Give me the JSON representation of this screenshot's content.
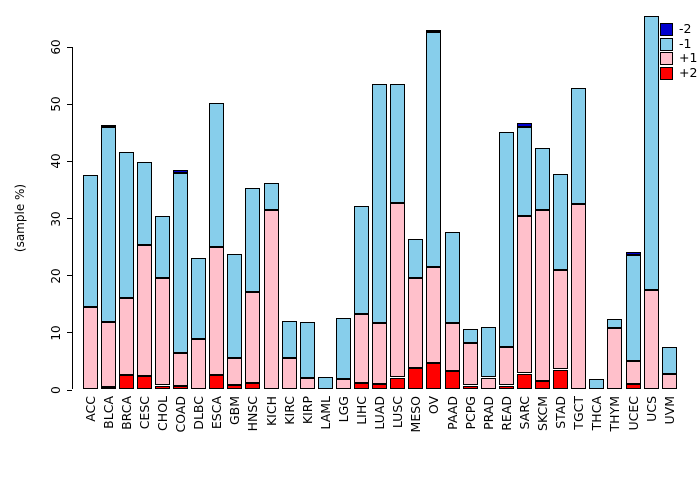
{
  "chart_data": {
    "type": "bar",
    "stacked": true,
    "title": "",
    "xlabel": "",
    "ylabel": "(sample %)",
    "ylim": [
      0,
      67
    ],
    "yticks": [
      0,
      10,
      20,
      30,
      40,
      50,
      60
    ],
    "grid": false,
    "legend_position": "top-right",
    "legend": [
      {
        "label": "-2",
        "color": "#0000CD"
      },
      {
        "label": "-1",
        "color": "#87CEEB"
      },
      {
        "label": "+1",
        "color": "#FFC0CB"
      },
      {
        "label": "+2",
        "color": "#FF0000"
      }
    ],
    "stack_order_bottom_to_top": [
      "+2",
      "+1",
      "-1",
      "-2"
    ],
    "categories": [
      "ACC",
      "BLCA",
      "BRCA",
      "CESC",
      "CHOL",
      "COAD",
      "DLBC",
      "ESCA",
      "GBM",
      "HNSC",
      "KICH",
      "KIRC",
      "KIRP",
      "LAML",
      "LGG",
      "LIHC",
      "LUAD",
      "LUSC",
      "MESO",
      "OV",
      "PAAD",
      "PCPG",
      "PRAD",
      "READ",
      "SARC",
      "SKCM",
      "STAD",
      "TGCT",
      "THCA",
      "THYM",
      "UCEC",
      "UCS",
      "UVM"
    ],
    "series": [
      {
        "name": "+2",
        "color": "#FF0000",
        "values": [
          0,
          0.4,
          2.6,
          2.3,
          0.7,
          0.6,
          0,
          2.5,
          0.8,
          1.1,
          0,
          0,
          0,
          0,
          0,
          1.1,
          0.9,
          2.1,
          3.7,
          4.6,
          3.3,
          0.7,
          0,
          0.7,
          2.8,
          1.5,
          3.5,
          0,
          0,
          0,
          1.0,
          0,
          0
        ]
      },
      {
        "name": "+1",
        "color": "#FFC0CB",
        "values": [
          14.4,
          11.4,
          13.5,
          23.0,
          18.8,
          5.8,
          8.8,
          22.4,
          4.7,
          16.0,
          31.5,
          5.5,
          2.0,
          0,
          1.8,
          12.1,
          10.7,
          30.5,
          15.8,
          16.9,
          8.4,
          7.4,
          2.1,
          6.7,
          27.6,
          29.9,
          17.5,
          32.5,
          0,
          10.7,
          4.0,
          17.5,
          2.7
        ]
      },
      {
        "name": "-1",
        "color": "#87CEEB",
        "values": [
          23.2,
          34.1,
          25.4,
          14.5,
          10.9,
          31.5,
          14.2,
          25.3,
          18.3,
          18.2,
          4.6,
          6.5,
          9.9,
          2.2,
          10.8,
          19.0,
          41.9,
          20.9,
          6.8,
          41.0,
          15.9,
          2.5,
          8.8,
          37.7,
          15.5,
          10.8,
          16.8,
          20.3,
          1.8,
          1.6,
          18.5,
          47.9,
          4.8
        ]
      },
      {
        "name": "-2",
        "color": "#0000CD",
        "values": [
          0,
          0.3,
          0,
          0,
          0,
          0.5,
          0,
          0,
          0,
          0,
          0,
          0,
          0,
          0,
          0,
          0,
          0,
          0,
          0,
          0.3,
          0,
          0,
          0,
          0,
          0.8,
          0,
          0,
          0,
          0,
          0,
          0.5,
          0,
          0
        ]
      }
    ],
    "totals": [
      37.6,
      46.2,
      41.5,
      39.8,
      30.4,
      38.4,
      23.0,
      50.2,
      23.8,
      35.3,
      36.1,
      12.0,
      11.9,
      2.2,
      12.6,
      32.2,
      53.5,
      53.5,
      26.3,
      62.8,
      27.6,
      10.6,
      10.9,
      45.1,
      46.7,
      42.2,
      37.8,
      52.8,
      1.8,
      12.3,
      24.0,
      65.4,
      7.5
    ]
  }
}
